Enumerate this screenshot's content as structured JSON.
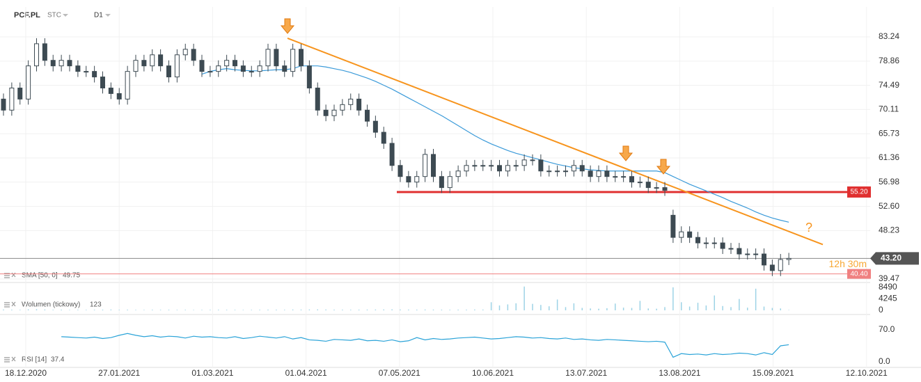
{
  "chart_data": {
    "type": "candlestick",
    "symbol": "PCF.PL",
    "market": "STC",
    "interval": "D1",
    "open": [
      72,
      70,
      74,
      72,
      78,
      82,
      79,
      78,
      79,
      78,
      77,
      77,
      76,
      74,
      73,
      72,
      77,
      79,
      78,
      80,
      78,
      76,
      80,
      81,
      79,
      77,
      77,
      78,
      79,
      78,
      77,
      77,
      78,
      81,
      78,
      77,
      81,
      78,
      74,
      70,
      69,
      70,
      71,
      72,
      70,
      68,
      66,
      64,
      60,
      58,
      57,
      58,
      62,
      58,
      56,
      58,
      59,
      60,
      60,
      60,
      60,
      59,
      60,
      60,
      61,
      61,
      59,
      59,
      59,
      59,
      60,
      59,
      58,
      59,
      58,
      58,
      58,
      57,
      57,
      56,
      56,
      51,
      47,
      48,
      47,
      46,
      46,
      46,
      45,
      45,
      44,
      44,
      44,
      42,
      41,
      43
    ],
    "high": [
      73,
      75,
      75,
      79,
      83,
      83,
      80,
      80,
      80,
      79,
      78,
      78,
      77,
      75,
      74,
      78,
      80,
      80,
      81,
      81,
      79,
      81,
      82,
      82,
      80,
      78,
      79,
      80,
      80,
      79,
      78,
      79,
      82,
      82,
      79,
      82,
      82,
      79,
      75,
      71,
      71,
      72,
      73,
      73,
      71,
      69,
      67,
      65,
      61,
      59,
      59,
      63,
      63,
      59,
      59,
      60,
      61,
      61,
      61,
      61,
      61,
      61,
      61,
      62,
      62,
      62,
      60,
      60,
      60,
      61,
      61,
      60,
      60,
      60,
      59,
      59,
      59,
      58,
      58,
      57,
      57,
      52,
      49,
      49,
      48,
      47,
      47,
      47,
      46,
      46,
      45,
      45,
      45,
      43,
      44,
      44.2
    ],
    "low": [
      69,
      69,
      71,
      71,
      77,
      78,
      77,
      77,
      77,
      76,
      76,
      75,
      73,
      72,
      71,
      71,
      76,
      77,
      77,
      77,
      75,
      75,
      79,
      78,
      76,
      76,
      76,
      77,
      77,
      76,
      76,
      76,
      77,
      77,
      76,
      76,
      77,
      73,
      69,
      68,
      68,
      69,
      70,
      69,
      67,
      65,
      63,
      59,
      57,
      56,
      56,
      57,
      57,
      55,
      55,
      57,
      58,
      59,
      59,
      59,
      58,
      58,
      59,
      59,
      60,
      58,
      58,
      58,
      58,
      58,
      58,
      57,
      57,
      57,
      57,
      57,
      56,
      56,
      55,
      55,
      54.5,
      46,
      46,
      46,
      45,
      45,
      45,
      44,
      44,
      43,
      43,
      43,
      41,
      40,
      40,
      42
    ],
    "close": [
      70,
      74,
      72,
      78,
      82,
      79,
      78,
      79,
      78,
      77,
      77,
      76,
      74,
      73,
      72,
      77,
      79,
      78,
      80,
      78,
      76,
      80,
      81,
      79,
      77,
      77,
      78,
      79,
      78,
      77,
      77,
      78,
      81,
      78,
      77,
      81,
      78,
      74,
      70,
      69,
      70,
      71,
      72,
      70,
      68,
      66,
      64,
      60,
      58,
      57,
      58,
      62,
      58,
      56,
      58,
      59,
      60,
      60,
      60,
      60,
      59,
      60,
      60,
      61,
      61,
      59,
      59,
      59,
      59,
      60,
      59,
      58,
      59,
      58,
      58,
      58,
      57,
      57,
      56,
      56,
      55.5,
      47,
      48,
      47,
      46,
      46,
      46,
      45,
      45,
      44,
      44,
      44,
      42,
      41,
      43,
      43.2
    ],
    "ylim": [
      38.97,
      88.65
    ],
    "yticks": [
      83.24,
      78.86,
      74.49,
      70.11,
      65.73,
      61.36,
      56.98,
      {
        "value": 52.6,
        "label": "52.60"
      },
      48.23,
      39.47
    ],
    "xticks": [
      "18.12.2020",
      "27.01.2021",
      "01.03.2021",
      "01.04.2021",
      "07.05.2021",
      "10.06.2021",
      "13.07.2021",
      "13.08.2021",
      "15.09.2021",
      "12.10.2021"
    ],
    "last_price": {
      "value": 43.2,
      "label": "43.20"
    },
    "low_marker": {
      "value": 40.4,
      "label": "40.40"
    },
    "support": {
      "value": 55.2,
      "label": "55.20",
      "color": "#e03030"
    },
    "trendline": {
      "values": [
        83.0,
        45.7
      ],
      "color": "#f7941d"
    },
    "annotation": "?",
    "timer": "12h 30m",
    "sma": {
      "name": "SMA [50, 0]",
      "color": "#3a9ad9",
      "values": [
        null,
        null,
        null,
        null,
        null,
        null,
        null,
        null,
        null,
        null,
        null,
        null,
        null,
        null,
        null,
        null,
        null,
        null,
        null,
        null,
        null,
        null,
        null,
        null,
        76.5,
        77,
        77.3,
        77.5,
        77.3,
        77.2,
        77.1,
        77.1,
        77.2,
        77.3,
        77.3,
        77.5,
        78,
        78,
        78,
        77.8,
        77.5,
        77.2,
        76.8,
        76.3,
        75.8,
        75.2,
        74.5,
        73.8,
        73,
        72.2,
        71.4,
        70.6,
        69.8,
        69,
        68.1,
        67.2,
        66.3,
        65.4,
        64.6,
        63.9,
        63.3,
        62.7,
        62.2,
        61.8,
        61.4,
        61,
        60.6,
        60.2,
        59.9,
        59.6,
        59.4,
        59.2,
        59.1,
        59,
        59,
        59,
        59,
        59,
        59,
        59,
        58.7,
        58,
        57.3,
        56.6,
        56,
        55.4,
        54.8,
        54.2,
        53.5,
        52.9,
        52.3,
        51.6,
        51,
        50.5,
        50.1,
        49.75
      ]
    },
    "volume": {
      "name": "Wolumen (tickowy)",
      "color": "#9dd3e6",
      "ylim": [
        -1544,
        9776
      ],
      "yticks": [
        8490,
        4245,
        0
      ],
      "values": [
        300,
        250,
        200,
        350,
        400,
        300,
        200,
        250,
        150,
        200,
        180,
        220,
        260,
        300,
        200,
        250,
        180,
        160,
        220,
        200,
        240,
        180,
        200,
        150,
        170,
        200,
        230,
        210,
        190,
        160,
        180,
        220,
        260,
        240,
        200,
        300,
        280,
        320,
        350,
        300,
        260,
        240,
        220,
        260,
        280,
        300,
        320,
        360,
        300,
        280,
        260,
        300,
        280,
        250,
        220,
        260,
        240,
        300,
        280,
        3000,
        1800,
        2200,
        2600,
        8800,
        2400,
        2000,
        1500,
        4000,
        1200,
        2600,
        900,
        700,
        600,
        800,
        2500,
        1000,
        900,
        3500,
        700,
        600,
        1200,
        8500,
        3000,
        1400,
        2800,
        1800,
        5500,
        1600,
        1200,
        4200,
        1000,
        8000,
        1400,
        900,
        700,
        123
      ]
    },
    "rsi": {
      "name": "RSI [14]",
      "color": "#2aa3d8",
      "ylim": [
        -7.6,
        98.9
      ],
      "yticks": [
        {
          "value": 70,
          "label": "70.0"
        },
        {
          "value": 0,
          "label": "0.0"
        }
      ],
      "values": [
        null,
        null,
        null,
        null,
        null,
        null,
        null,
        55,
        54,
        53,
        52,
        54,
        51,
        53,
        58,
        62,
        58,
        55,
        57,
        54,
        56,
        55,
        52,
        56,
        54,
        55,
        53,
        52,
        55,
        51,
        53,
        56,
        54,
        52,
        55,
        50,
        53,
        48,
        47,
        45,
        49,
        48,
        47,
        50,
        46,
        47,
        45,
        48,
        44,
        46,
        53,
        48,
        51,
        49,
        50,
        52,
        53,
        54,
        52,
        50,
        51,
        53,
        55,
        54,
        52,
        53,
        51,
        50,
        52,
        49,
        50,
        48,
        47,
        49,
        48,
        47,
        46,
        45,
        44,
        45,
        43,
        10,
        18,
        16,
        17,
        15,
        18,
        16,
        17,
        19,
        18,
        15,
        20,
        16,
        35,
        37.4
      ]
    }
  }
}
